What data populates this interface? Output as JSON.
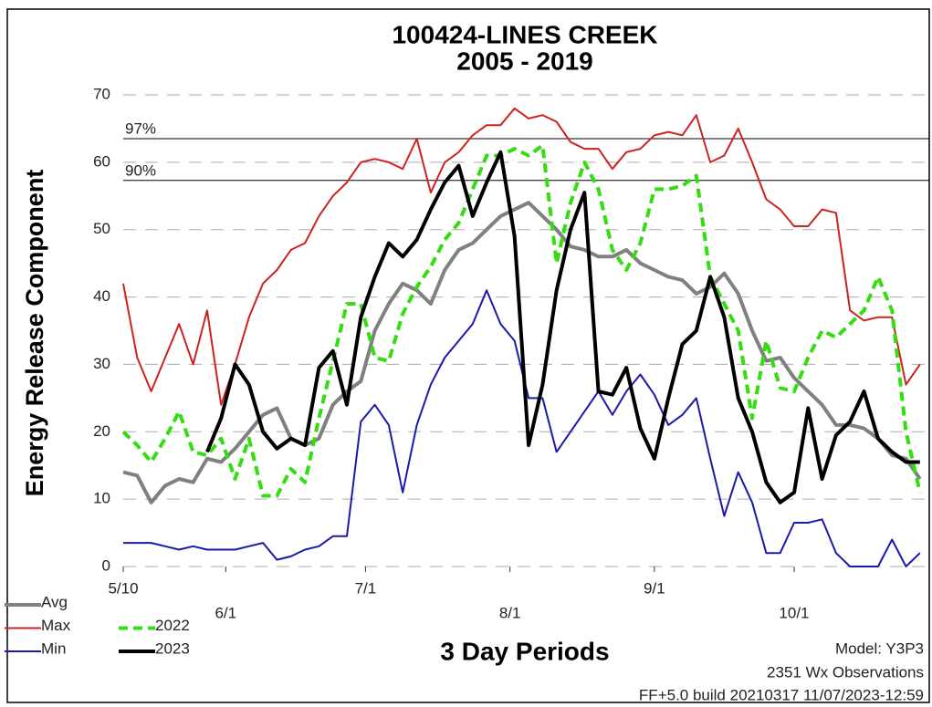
{
  "chart_data": {
    "type": "line",
    "title": "100424-LINES CREEK",
    "subtitle": "2005 - 2019",
    "ylabel": "Energy Release Component",
    "xlabel": "3 Day Periods",
    "annotations": [
      "Model: Y3P3",
      "2351 Wx Observations",
      "FF+5.0 build 20210317 11/07/2023-12:59"
    ],
    "grid": true,
    "xlim": [
      0,
      173
    ],
    "xticks": [
      {
        "value": 0,
        "label": "5/10"
      },
      {
        "value": 22,
        "label": "6/1"
      },
      {
        "value": 52,
        "label": "7/1"
      },
      {
        "value": 83,
        "label": "8/1"
      },
      {
        "value": 114,
        "label": "9/1"
      },
      {
        "value": 144,
        "label": "10/1"
      }
    ],
    "ylim": [
      0,
      70
    ],
    "yticks": [
      0,
      10,
      20,
      30,
      40,
      50,
      60,
      70
    ],
    "reference_lines": [
      {
        "label": "97%",
        "value": 63.5
      },
      {
        "label": "90%",
        "value": 57.3
      }
    ],
    "x": [
      0,
      3,
      6,
      9,
      12,
      15,
      18,
      21,
      24,
      27,
      30,
      33,
      36,
      39,
      42,
      45,
      48,
      51,
      54,
      57,
      60,
      63,
      66,
      69,
      72,
      75,
      78,
      81,
      84,
      87,
      90,
      93,
      96,
      99,
      102,
      105,
      108,
      111,
      114,
      117,
      120,
      123,
      126,
      129,
      132,
      135,
      138,
      141,
      144,
      147,
      150,
      153,
      156,
      159,
      162,
      165,
      168,
      171
    ],
    "series": [
      {
        "name": "Avg",
        "color": "#808080",
        "width": 4,
        "dashed": false,
        "values": [
          14,
          13.5,
          9.5,
          12,
          13,
          12.5,
          16,
          15.5,
          17.5,
          20,
          22.5,
          23.5,
          19,
          18,
          19,
          24,
          26,
          27.5,
          35,
          39,
          42,
          41,
          39,
          44,
          47,
          48,
          50,
          52,
          53,
          54,
          52,
          50,
          47.5,
          47,
          46,
          46,
          47,
          45,
          44,
          43,
          42.5,
          40.5,
          41.5,
          43.5,
          40.5,
          35,
          30.5,
          31,
          28,
          26,
          24,
          21,
          21,
          20.5,
          19,
          16.5,
          16,
          13
        ]
      },
      {
        "name": "Max",
        "color": "#cc2222",
        "width": 2,
        "dashed": false,
        "values": [
          42,
          31,
          26,
          31,
          36,
          30,
          38,
          24,
          30,
          37,
          42,
          44,
          47,
          48,
          52,
          55,
          57,
          60,
          60.5,
          60,
          59,
          63.5,
          55.5,
          60,
          61.5,
          64,
          65.5,
          65.5,
          68,
          66.5,
          67,
          66,
          63,
          62,
          62,
          59,
          61.5,
          62,
          64,
          64.5,
          64,
          67,
          60,
          61,
          65,
          60,
          54.5,
          53,
          50.5,
          50.5,
          53,
          52.5,
          38,
          36.5,
          37,
          37,
          27,
          30
        ]
      },
      {
        "name": "Min",
        "color": "#1a1aaa",
        "width": 2,
        "dashed": false,
        "values": [
          3.5,
          3.5,
          3.5,
          3,
          2.5,
          3,
          2.5,
          2.5,
          2.5,
          3,
          3.5,
          1,
          1.5,
          2.5,
          3,
          4.5,
          4.5,
          21.5,
          24,
          21,
          11,
          21,
          27,
          31,
          33.5,
          36,
          41,
          36,
          33.5,
          25,
          25,
          17,
          20,
          23,
          26,
          22.5,
          26,
          28.5,
          25.5,
          21,
          22.5,
          25,
          16,
          7.5,
          14,
          9.5,
          2,
          2,
          6.5,
          6.5,
          7,
          2,
          0,
          0,
          0,
          4,
          0,
          2
        ]
      },
      {
        "name": "2022",
        "color": "#33dd11",
        "width": 4,
        "dashed": true,
        "values": [
          20,
          18,
          15.5,
          19,
          23,
          17,
          16.5,
          19,
          13,
          19,
          10.5,
          10.5,
          14.5,
          12.5,
          22,
          30.5,
          39,
          39,
          31,
          30.5,
          37.5,
          41.5,
          44.5,
          48.5,
          51,
          56,
          61,
          61,
          62,
          61,
          62.5,
          45,
          54,
          60,
          56,
          47,
          44,
          48,
          56,
          56,
          56.5,
          58,
          43,
          39,
          35,
          22,
          33.5,
          26.5,
          26,
          31,
          35,
          34,
          36,
          38,
          43,
          38,
          20,
          11
        ]
      },
      {
        "name": "2023",
        "color": "#000000",
        "width": 4,
        "dashed": false,
        "values": [
          null,
          null,
          null,
          null,
          null,
          null,
          17,
          22,
          30,
          27,
          20,
          17.5,
          19,
          18,
          29.5,
          32,
          24,
          37,
          43,
          48,
          46,
          48.5,
          53,
          57,
          59.5,
          52,
          57,
          61.5,
          49,
          18,
          27,
          41,
          50,
          55.5,
          26,
          25.5,
          29.5,
          20.5,
          16,
          25,
          33,
          35,
          43,
          37,
          25,
          20,
          12.5,
          9.5,
          11,
          23.5,
          13,
          19.5,
          21.5,
          26,
          19,
          17,
          15.5,
          15.5
        ]
      }
    ]
  }
}
